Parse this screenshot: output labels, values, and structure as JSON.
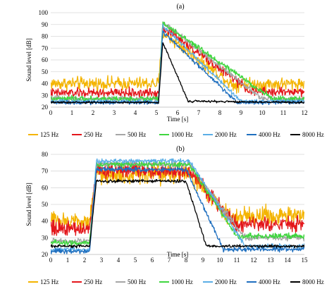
{
  "chart_data": [
    {
      "type": "line",
      "panel_label": "(a)",
      "xlabel": "Time [s]",
      "ylabel": "Sound level [dB]",
      "xlim": [
        0,
        12
      ],
      "ylim": [
        20,
        100
      ],
      "xticks": [
        0,
        1,
        2,
        3,
        4,
        5,
        6,
        7,
        8,
        9,
        10,
        11,
        12
      ],
      "yticks": [
        20,
        30,
        40,
        50,
        60,
        70,
        80,
        90,
        100
      ],
      "grid": true,
      "legend": "bottom",
      "series": [
        {
          "name": "125 Hz",
          "color": "#f4b400",
          "keypoints": [
            [
              0,
              40
            ],
            [
              5.1,
              40
            ],
            [
              5.3,
              83
            ],
            [
              8.6,
              39
            ],
            [
              12,
              40
            ]
          ],
          "noise": 5
        },
        {
          "name": "250 Hz",
          "color": "#e3161b",
          "keypoints": [
            [
              0,
              32
            ],
            [
              5.1,
              32
            ],
            [
              5.3,
              88
            ],
            [
              9.5,
              33
            ],
            [
              12,
              33
            ]
          ],
          "noise": 3.5
        },
        {
          "name": "500 Hz",
          "color": "#a6a6a6",
          "keypoints": [
            [
              0,
              27
            ],
            [
              5.1,
              27
            ],
            [
              5.3,
              92
            ],
            [
              10.0,
              27
            ],
            [
              12,
              27
            ]
          ],
          "noise": 2
        },
        {
          "name": "1000 Hz",
          "color": "#3fd63f",
          "keypoints": [
            [
              0,
              27
            ],
            [
              5.1,
              27
            ],
            [
              5.3,
              91
            ],
            [
              10.5,
              27
            ],
            [
              12,
              27
            ]
          ],
          "noise": 2
        },
        {
          "name": "2000 Hz",
          "color": "#5aaee6",
          "keypoints": [
            [
              0,
              25
            ],
            [
              5.1,
              25
            ],
            [
              5.3,
              89
            ],
            [
              9.0,
              25
            ],
            [
              12,
              25
            ]
          ],
          "noise": 1.5
        },
        {
          "name": "4000 Hz",
          "color": "#1f6fbf",
          "keypoints": [
            [
              0,
              24
            ],
            [
              5.1,
              24
            ],
            [
              5.3,
              84
            ],
            [
              8.8,
              24
            ],
            [
              12,
              24
            ]
          ],
          "noise": 1.5
        },
        {
          "name": "8000 Hz",
          "color": "#000000",
          "keypoints": [
            [
              0,
              24
            ],
            [
              5.1,
              24
            ],
            [
              5.3,
              75
            ],
            [
              6.5,
              25
            ],
            [
              12,
              24
            ]
          ],
          "noise": 0.8
        }
      ]
    },
    {
      "type": "line",
      "panel_label": "(b)",
      "xlabel": "Time [s]",
      "ylabel": "Sound level [dB]",
      "xlim": [
        0,
        15
      ],
      "ylim": [
        20,
        80
      ],
      "xticks": [
        0,
        1,
        2,
        3,
        4,
        5,
        6,
        7,
        8,
        9,
        10,
        11,
        12,
        13,
        14,
        15
      ],
      "yticks": [
        20,
        30,
        40,
        50,
        60,
        70,
        80
      ],
      "grid": true,
      "legend": "bottom",
      "series": [
        {
          "name": "125 Hz",
          "color": "#f4b400",
          "keypoints": [
            [
              0,
              40
            ],
            [
              2.3,
              40
            ],
            [
              2.7,
              68
            ],
            [
              8.2,
              68
            ],
            [
              10.5,
              43
            ],
            [
              15,
              43
            ]
          ],
          "noise": 5
        },
        {
          "name": "250 Hz",
          "color": "#e3161b",
          "keypoints": [
            [
              0,
              36
            ],
            [
              2.3,
              36
            ],
            [
              2.7,
              70
            ],
            [
              8.2,
              70
            ],
            [
              11.0,
              38
            ],
            [
              15,
              38
            ]
          ],
          "noise": 4
        },
        {
          "name": "500 Hz",
          "color": "#a6a6a6",
          "keypoints": [
            [
              0,
              28
            ],
            [
              2.3,
              28
            ],
            [
              2.7,
              74
            ],
            [
              8.2,
              74
            ],
            [
              11.5,
              30
            ],
            [
              15,
              30
            ]
          ],
          "noise": 1.5
        },
        {
          "name": "1000 Hz",
          "color": "#3fd63f",
          "keypoints": [
            [
              0,
              27
            ],
            [
              2.3,
              27
            ],
            [
              2.7,
              74
            ],
            [
              8.2,
              74
            ],
            [
              11.0,
              31
            ],
            [
              15,
              31
            ]
          ],
          "noise": 1.5
        },
        {
          "name": "2000 Hz",
          "color": "#5aaee6",
          "keypoints": [
            [
              0,
              23
            ],
            [
              2.3,
              23
            ],
            [
              2.7,
              76
            ],
            [
              8.2,
              76
            ],
            [
              11.5,
              25
            ],
            [
              15,
              25
            ]
          ],
          "noise": 1.2
        },
        {
          "name": "4000 Hz",
          "color": "#1f6fbf",
          "keypoints": [
            [
              0,
              22
            ],
            [
              2.3,
              22
            ],
            [
              2.7,
              71
            ],
            [
              8.0,
              71
            ],
            [
              10.2,
              23
            ],
            [
              15,
              23
            ]
          ],
          "noise": 1.2
        },
        {
          "name": "8000 Hz",
          "color": "#000000",
          "keypoints": [
            [
              0,
              25
            ],
            [
              2.3,
              25
            ],
            [
              2.7,
              64
            ],
            [
              8.0,
              64
            ],
            [
              9.2,
              25
            ],
            [
              15,
              25
            ]
          ],
          "noise": 0.8
        }
      ]
    }
  ]
}
